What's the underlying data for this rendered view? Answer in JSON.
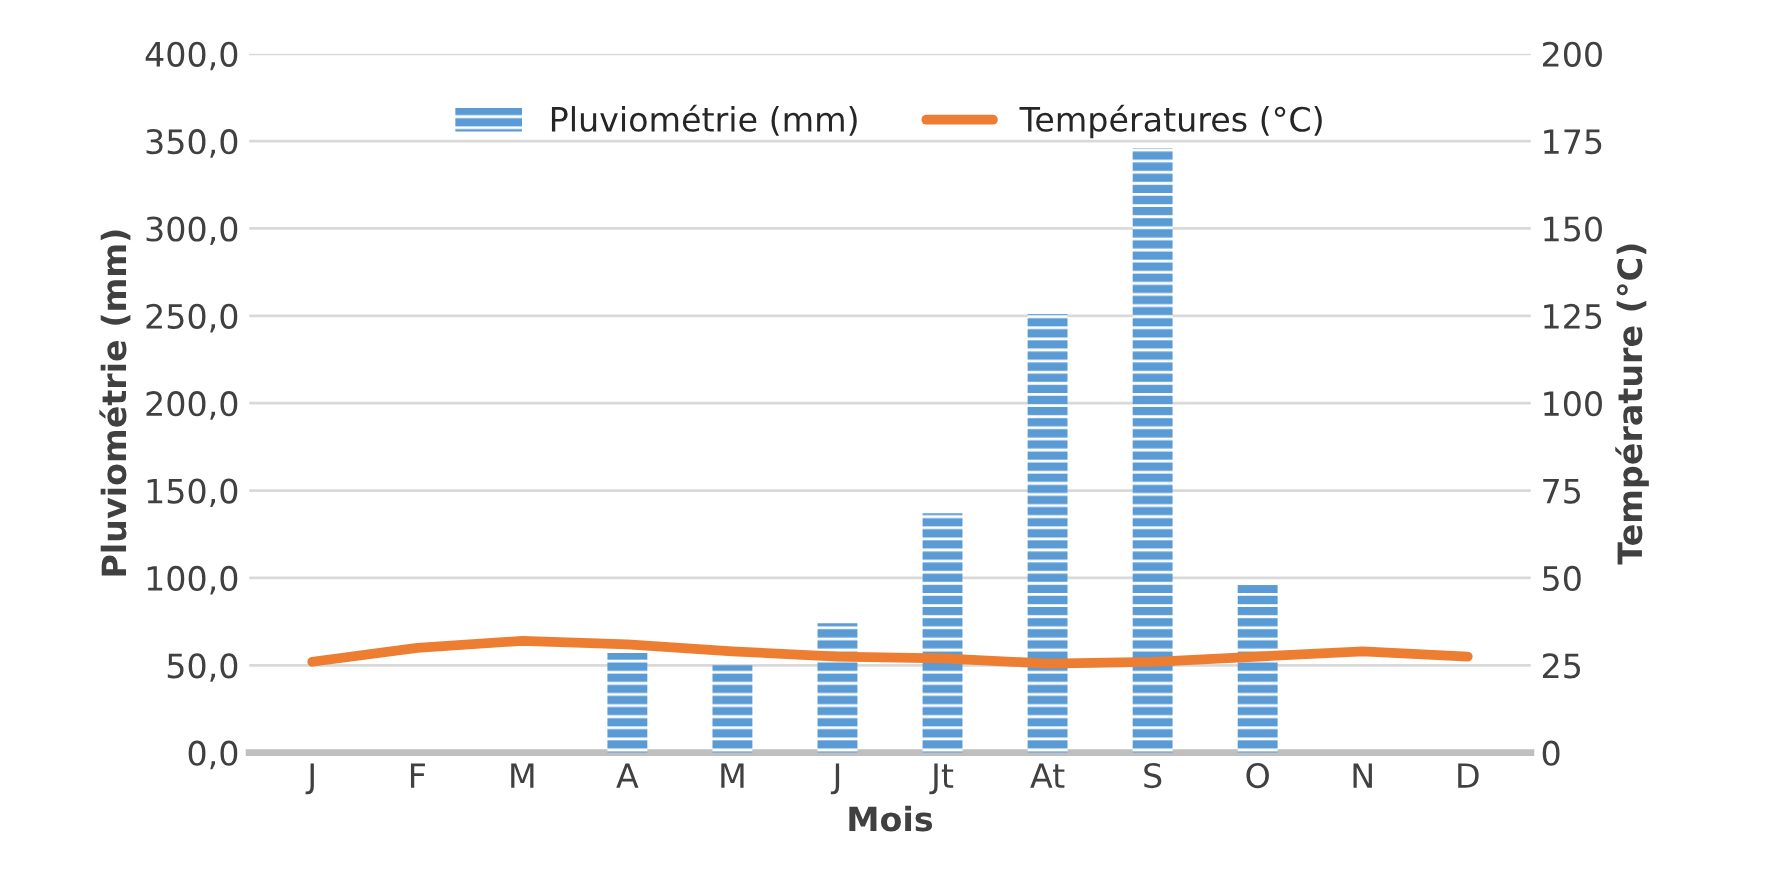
{
  "chart_data": {
    "type": "bar",
    "xlabel": "Mois",
    "ylabel": "Pluviométrie (mm)",
    "y2label": "Température (°C)",
    "categories": [
      "J",
      "F",
      "M",
      "A",
      "M",
      "J",
      "Jt",
      "At",
      "S",
      "O",
      "N",
      "D"
    ],
    "series": [
      {
        "name": "Pluviométrie (mm)",
        "color": "#5b9bd5",
        "values": [
          0,
          0,
          0,
          57,
          50,
          74,
          137,
          251,
          346,
          96,
          0,
          0
        ]
      },
      {
        "name": "Températures (°C)",
        "type": "line",
        "axis": "y2",
        "color": "#ed7d31",
        "values": [
          26,
          30,
          32,
          31,
          29,
          27.5,
          27,
          25.5,
          26,
          27.5,
          29,
          27.5
        ]
      }
    ],
    "ylim": [
      0,
      400
    ],
    "yticks": [
      {
        "value": 0,
        "label": "0,0"
      },
      {
        "value": 50,
        "label": "50,0"
      },
      {
        "value": 100,
        "label": "100,0"
      },
      {
        "value": 150,
        "label": "150,0"
      },
      {
        "value": 200,
        "label": "200,0"
      },
      {
        "value": 250,
        "label": "250,0"
      },
      {
        "value": 300,
        "label": "300,0"
      },
      {
        "value": 350,
        "label": "350,0"
      },
      {
        "value": 400,
        "label": "400,0"
      }
    ],
    "y2lim": [
      0,
      200
    ],
    "y2ticks": [
      0,
      25,
      50,
      75,
      100,
      125,
      150,
      175,
      200
    ],
    "grid": "y",
    "legend": "top",
    "marker": "none",
    "line_style": "solid"
  }
}
